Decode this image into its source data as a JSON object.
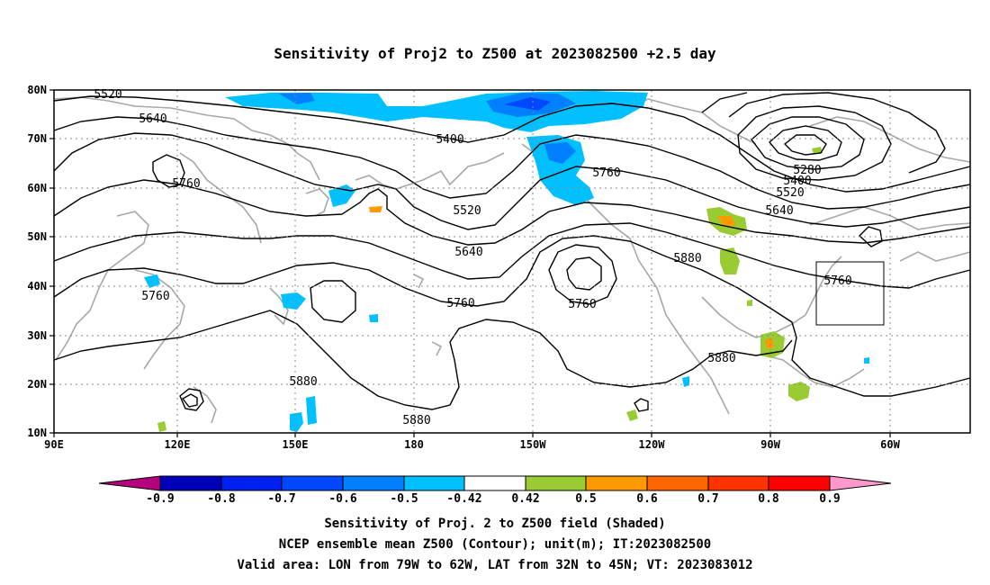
{
  "title": "Sensitivity of Proj2 to Z500 at 2023082500 +2.5 day",
  "lat_ticks": [
    "80N",
    "70N",
    "60N",
    "50N",
    "40N",
    "30N",
    "20N",
    "10N"
  ],
  "lon_ticks": [
    "90E",
    "120E",
    "150E",
    "180",
    "150W",
    "120W",
    "90W",
    "60W"
  ],
  "contour_labels": {
    "c5520_nw": "5520",
    "c5640_nw": "5640",
    "c5760_nw": "5760",
    "c5400_c": "5400",
    "c5760_c": "5760",
    "c5520_c": "5520",
    "c5640_c": "5640",
    "c5880_e": "5880",
    "c5280_ne": "5280",
    "c5400_ne": "5400",
    "c5520_ne": "5520",
    "c5640_ne": "5640",
    "c5760_w": "5760",
    "c5760_c2": "5760",
    "c5760_low": "5760",
    "c5760_box": "5760",
    "c5880_w": "5880",
    "c5880_s": "5880",
    "c5880_se": "5880"
  },
  "colorbar": {
    "labels": [
      "-0.9",
      "-0.8",
      "-0.7",
      "-0.6",
      "-0.5",
      "-0.42",
      "0.42",
      "0.5",
      "0.6",
      "0.7",
      "0.8",
      "0.9"
    ],
    "colors": [
      "#b4007c",
      "#0000b8",
      "#0020f0",
      "#0048ff",
      "#0080ff",
      "#00c0ff",
      "#ffffff",
      "#99cc33",
      "#ff9900",
      "#ff6600",
      "#ff3300",
      "#ff0000",
      "#ff99cc"
    ]
  },
  "captions": {
    "line1": "Sensitivity of Proj. 2 to Z500 field (Shaded)",
    "line2": "NCEP ensemble mean Z500 (Contour); unit(m); IT:2023082500",
    "line3": "Valid area: LON from 79W to 62W, LAT from 32N to 45N; VT: 2023083012"
  }
}
